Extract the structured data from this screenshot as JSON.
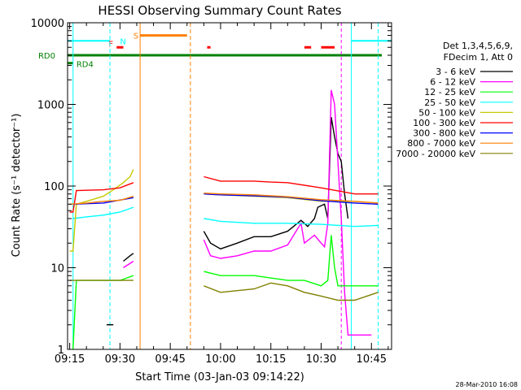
{
  "chart_data": {
    "type": "line",
    "title": "HESSI Observing Summary Count Rates",
    "xlabel": "Start Time (03-Jan-03 09:14:22)",
    "ylabel": "Count Rate (s⁻¹ detector⁻¹)",
    "yscale": "log",
    "xlim": [
      "09:14:22",
      "10:51:00"
    ],
    "ylim": [
      1,
      10000
    ],
    "x_ticks": [
      "09:15",
      "09:30",
      "09:45",
      "10:00",
      "10:15",
      "10:30",
      "10:45"
    ],
    "y_ticks": [
      "1",
      "10",
      "100",
      "1000",
      "10000"
    ],
    "legend_header": [
      "Det 1,3,4,5,6,9,",
      "FDecim 1, Att 0"
    ],
    "footer_date": "28-Mar-2010 16:08",
    "flags": [
      {
        "label": "RD0",
        "color": "#008000"
      },
      {
        "label": "RD4",
        "color": "#008000"
      },
      {
        "label": "F",
        "color": "#ff0000"
      },
      {
        "label": "N",
        "color": "#00ffff"
      },
      {
        "label": "S",
        "color": "#ff8000"
      }
    ],
    "series": [
      {
        "name": "3 - 6 keV",
        "color": "#000000",
        "segments": [
          [
            [
              "09:26",
              2
            ],
            [
              "09:28",
              2
            ]
          ],
          [
            [
              "09:31",
              12
            ],
            [
              "09:33",
              14
            ],
            [
              "09:34",
              15
            ]
          ],
          [
            [
              "09:55",
              28
            ],
            [
              "09:57",
              20
            ],
            [
              "10:00",
              17
            ],
            [
              "10:05",
              20
            ],
            [
              "10:10",
              24
            ],
            [
              "10:15",
              24
            ],
            [
              "10:20",
              28
            ],
            [
              "10:24",
              38
            ],
            [
              "10:26",
              32
            ],
            [
              "10:28",
              40
            ],
            [
              "10:29",
              55
            ],
            [
              "10:31",
              60
            ],
            [
              "10:32",
              40
            ],
            [
              "10:33",
              700
            ],
            [
              "10:34",
              400
            ],
            [
              "10:35",
              250
            ],
            [
              "10:36",
              200
            ],
            [
              "10:37",
              80
            ],
            [
              "10:38",
              40
            ]
          ]
        ]
      },
      {
        "name": "6 - 12 keV",
        "color": "#ff00ff",
        "segments": [
          [
            [
              "09:31",
              10
            ],
            [
              "09:34",
              12
            ]
          ],
          [
            [
              "09:55",
              22
            ],
            [
              "09:57",
              14
            ],
            [
              "10:00",
              13
            ],
            [
              "10:05",
              14
            ],
            [
              "10:10",
              16
            ],
            [
              "10:15",
              16
            ],
            [
              "10:20",
              19
            ],
            [
              "10:24",
              35
            ],
            [
              "10:25",
              20
            ],
            [
              "10:28",
              25
            ],
            [
              "10:30",
              20
            ],
            [
              "10:31",
              18
            ],
            [
              "10:32",
              35
            ],
            [
              "10:33",
              1500
            ],
            [
              "10:34",
              1000
            ],
            [
              "10:35",
              200
            ],
            [
              "10:36",
              40
            ],
            [
              "10:37",
              5
            ],
            [
              "10:38",
              1.5
            ],
            [
              "10:45",
              1.5
            ]
          ]
        ]
      },
      {
        "name": "12 - 25 keV",
        "color": "#00ff00",
        "segments": [
          [
            [
              "09:16",
              1
            ],
            [
              "09:17",
              7
            ],
            [
              "09:20",
              7
            ],
            [
              "09:25",
              7
            ],
            [
              "09:30",
              7
            ],
            [
              "09:34",
              8
            ]
          ],
          [
            [
              "09:55",
              9
            ],
            [
              "10:00",
              8
            ],
            [
              "10:10",
              8
            ],
            [
              "10:20",
              7
            ],
            [
              "10:25",
              7
            ],
            [
              "10:30",
              6
            ],
            [
              "10:32",
              7
            ],
            [
              "10:33",
              25
            ],
            [
              "10:34",
              10
            ],
            [
              "10:35",
              6
            ],
            [
              "10:45",
              6
            ],
            [
              "10:47",
              6
            ]
          ]
        ]
      },
      {
        "name": "25 - 50 keV",
        "color": "#00ffff",
        "segments": [
          [
            [
              "09:16",
              40
            ],
            [
              "09:20",
              42
            ],
            [
              "09:25",
              44
            ],
            [
              "09:30",
              48
            ],
            [
              "09:34",
              55
            ]
          ],
          [
            [
              "09:55",
              40
            ],
            [
              "10:00",
              37
            ],
            [
              "10:10",
              35
            ],
            [
              "10:20",
              35
            ],
            [
              "10:30",
              34
            ],
            [
              "10:40",
              32
            ],
            [
              "10:47",
              33
            ]
          ]
        ]
      },
      {
        "name": "50 - 100 keV",
        "color": "#c8c800",
        "segments": [
          [
            [
              "09:15",
              16
            ],
            [
              "09:16",
              16
            ],
            [
              "09:17",
              60
            ],
            [
              "09:20",
              65
            ],
            [
              "09:25",
              75
            ],
            [
              "09:28",
              90
            ],
            [
              "09:31",
              110
            ],
            [
              "09:33",
              130
            ],
            [
              "09:34",
              160
            ]
          ],
          [
            [
              "09:55",
              80
            ],
            [
              "10:00",
              78
            ],
            [
              "10:10",
              75
            ],
            [
              "10:20",
              72
            ],
            [
              "10:30",
              65
            ],
            [
              "10:40",
              65
            ],
            [
              "10:47",
              62
            ]
          ]
        ]
      },
      {
        "name": "100 - 300 keV",
        "color": "#ff0000",
        "segments": [
          [
            [
              "09:15",
              48
            ],
            [
              "09:16",
              48
            ],
            [
              "09:17",
              88
            ],
            [
              "09:25",
              90
            ],
            [
              "09:30",
              95
            ],
            [
              "09:34",
              110
            ]
          ],
          [
            [
              "09:55",
              130
            ],
            [
              "10:00",
              115
            ],
            [
              "10:10",
              115
            ],
            [
              "10:15",
              112
            ],
            [
              "10:20",
              110
            ],
            [
              "10:30",
              95
            ],
            [
              "10:40",
              80
            ],
            [
              "10:47",
              80
            ]
          ]
        ]
      },
      {
        "name": "300 - 800 keV",
        "color": "#0000ff",
        "segments": [
          [
            [
              "09:16",
              60
            ],
            [
              "09:25",
              62
            ],
            [
              "09:34",
              72
            ]
          ],
          [
            [
              "09:55",
              80
            ],
            [
              "10:00",
              78
            ],
            [
              "10:10",
              76
            ],
            [
              "10:20",
              73
            ],
            [
              "10:30",
              66
            ],
            [
              "10:40",
              62
            ],
            [
              "10:47",
              60
            ]
          ]
        ]
      },
      {
        "name": "800 - 7000 keV",
        "color": "#ff8000",
        "segments": [
          [
            [
              "09:15",
              60
            ],
            [
              "09:20",
              62
            ],
            [
              "09:25",
              65
            ],
            [
              "09:30",
              67
            ],
            [
              "09:34",
              75
            ]
          ],
          [
            [
              "09:55",
              82
            ],
            [
              "10:00",
              80
            ],
            [
              "10:10",
              78
            ],
            [
              "10:20",
              74
            ],
            [
              "10:30",
              68
            ],
            [
              "10:40",
              65
            ],
            [
              "10:47",
              62
            ]
          ]
        ]
      },
      {
        "name": "7000 - 20000 keV",
        "color": "#808000",
        "segments": [
          [
            [
              "09:15",
              7
            ],
            [
              "09:20",
              7
            ],
            [
              "09:25",
              7
            ],
            [
              "09:30",
              7
            ],
            [
              "09:34",
              7
            ]
          ],
          [
            [
              "09:55",
              6
            ],
            [
              "10:00",
              5
            ],
            [
              "10:10",
              5.5
            ],
            [
              "10:15",
              6.5
            ],
            [
              "10:20",
              6
            ],
            [
              "10:25",
              5
            ],
            [
              "10:30",
              4.5
            ],
            [
              "10:35",
              4
            ],
            [
              "10:40",
              4
            ],
            [
              "10:47",
              5
            ]
          ]
        ]
      }
    ]
  }
}
